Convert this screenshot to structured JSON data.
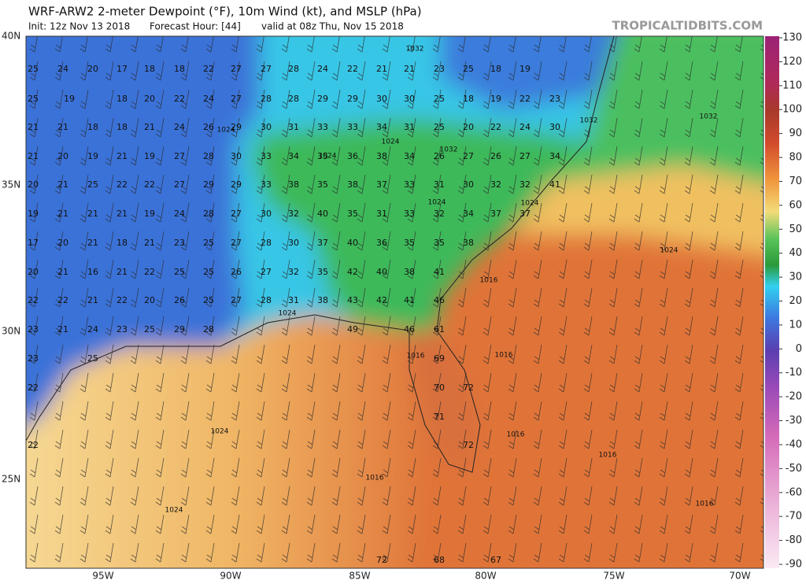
{
  "header": {
    "title": "WRF-ARW2 2-meter Dewpoint (°F), 10m Wind (kt), and MSLP (hPa)",
    "init": "Init: 12z Nov 13 2018",
    "forecast_hour": "Forecast Hour: [44]",
    "valid": "valid at 08z Thu, Nov 15 2018",
    "watermark": "TROPICALTIDBITS.COM"
  },
  "map": {
    "lat_labels": [
      "40N",
      "35N",
      "30N",
      "25N"
    ],
    "lon_labels": [
      "95W",
      "90W",
      "85W",
      "80W",
      "75W",
      "70W"
    ],
    "dewpoints": [
      [
        25,
        24,
        20,
        17,
        18,
        18,
        22,
        27,
        27,
        28,
        24,
        22,
        21,
        21,
        23,
        25,
        18,
        19
      ],
      [
        25,
        19,
        18,
        20,
        22,
        24,
        27,
        28,
        28,
        29,
        29,
        30,
        30,
        25,
        18,
        19,
        22,
        23
      ],
      [
        21,
        21,
        18,
        18,
        21,
        24,
        26,
        29,
        30,
        31,
        33,
        33,
        34,
        31,
        25,
        20,
        22,
        24,
        30
      ],
      [
        21,
        20,
        19,
        21,
        19,
        27,
        28,
        30,
        33,
        34,
        35,
        36,
        38,
        34,
        26,
        27,
        26,
        27,
        34
      ],
      [
        20,
        21,
        25,
        22,
        22,
        27,
        29,
        29,
        33,
        38,
        35,
        38,
        37,
        33,
        31,
        30,
        32,
        32,
        41
      ],
      [
        19,
        21,
        21,
        21,
        19,
        24,
        28,
        27,
        30,
        32,
        40,
        35,
        31,
        33,
        32,
        34,
        37,
        37
      ],
      [
        17,
        20,
        21,
        18,
        21,
        23,
        25,
        27,
        28,
        30,
        37,
        40,
        36,
        35,
        35,
        38
      ],
      [
        20,
        21,
        16,
        21,
        22,
        25,
        25,
        26,
        27,
        32,
        35,
        42,
        40,
        38,
        41
      ],
      [
        22,
        22,
        21,
        22,
        20,
        26,
        25,
        27,
        28,
        31,
        38,
        43,
        42,
        41,
        46
      ],
      [
        23,
        21,
        24,
        23,
        25,
        29,
        28,
        49,
        46,
        61
      ],
      [
        23,
        25,
        69
      ],
      [
        22,
        70,
        72
      ],
      [
        71
      ],
      [
        22,
        72
      ],
      [
        72,
        68,
        67
      ]
    ],
    "isobar_labels": [
      1032,
      1032,
      1032,
      1032,
      1024,
      1024,
      1024,
      1024,
      1024,
      1024,
      1024,
      1024,
      1024,
      1016,
      1016,
      1016,
      1016,
      1016,
      1016,
      1016
    ]
  },
  "colorbar": {
    "ticks": [
      130,
      120,
      110,
      100,
      90,
      80,
      70,
      60,
      50,
      40,
      30,
      20,
      10,
      0,
      -10,
      -20,
      -30,
      -40,
      -50,
      -60,
      -70,
      -80,
      -90
    ]
  }
}
